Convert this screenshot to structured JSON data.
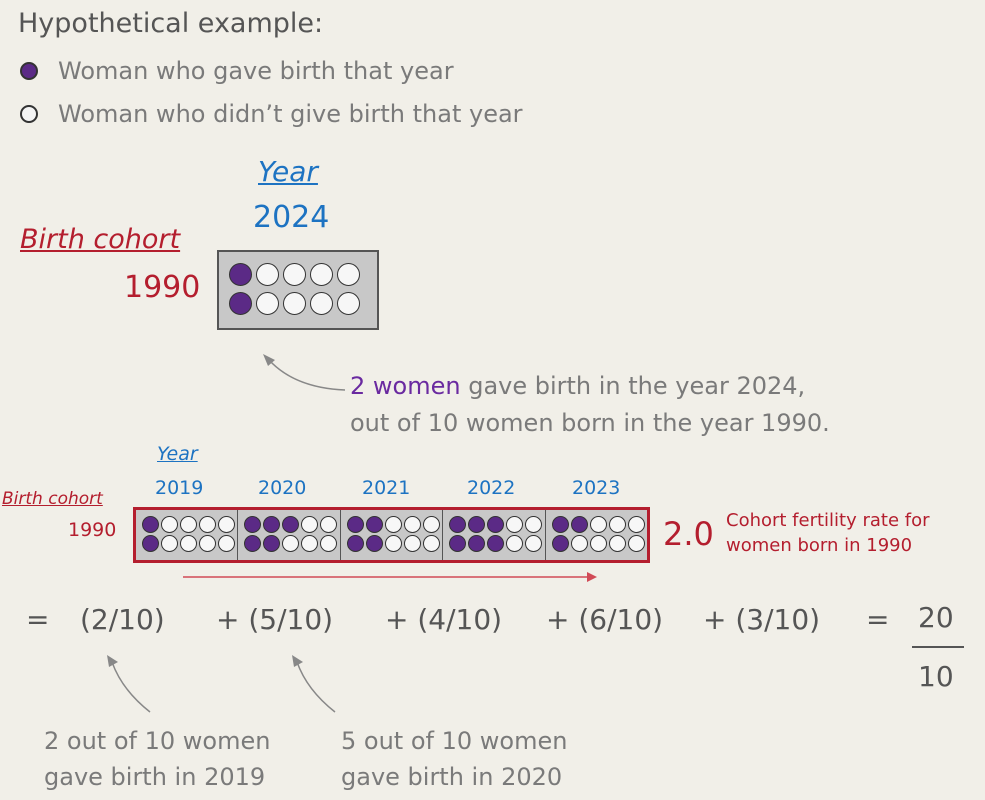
{
  "legend": {
    "title": "Hypothetical example:",
    "items": [
      {
        "label": "Woman who gave birth that year",
        "fill": "#5b2a86"
      },
      {
        "label": "Woman who didn’t give birth that year",
        "fill": "#f4f4f4"
      }
    ]
  },
  "example": {
    "year_label": "Year",
    "year_value": "2024",
    "cohort_label": "Birth cohort",
    "cohort_value": "1990",
    "grid": [
      [
        1,
        0,
        0,
        0,
        0
      ],
      [
        1,
        0,
        0,
        0,
        0
      ]
    ],
    "explanation_highlight": "2 women",
    "explanation_line1_rest": " gave birth in the year 2024,",
    "explanation_line2": "out of 10 women born in the year 1990."
  },
  "timeline": {
    "year_label": "Year",
    "cohort_label": "Birth cohort",
    "cohort_value": "1990",
    "years": [
      {
        "year": "2019",
        "grid": [
          [
            1,
            0,
            0,
            0,
            0
          ],
          [
            1,
            0,
            0,
            0,
            0
          ]
        ]
      },
      {
        "year": "2020",
        "grid": [
          [
            1,
            1,
            1,
            0,
            0
          ],
          [
            1,
            1,
            0,
            0,
            0
          ]
        ]
      },
      {
        "year": "2021",
        "grid": [
          [
            1,
            1,
            0,
            0,
            0
          ],
          [
            1,
            1,
            0,
            0,
            0
          ]
        ]
      },
      {
        "year": "2022",
        "grid": [
          [
            1,
            1,
            1,
            0,
            0
          ],
          [
            1,
            1,
            1,
            0,
            0
          ]
        ]
      },
      {
        "year": "2023",
        "grid": [
          [
            1,
            1,
            0,
            0,
            0
          ],
          [
            1,
            0,
            0,
            0,
            0
          ]
        ]
      }
    ],
    "rate_value": "2.0",
    "rate_label_line1": "Cohort fertility rate for",
    "rate_label_line2": "women born in 1990"
  },
  "equation": {
    "equals": "=",
    "terms": [
      "(2/10)",
      "+ (5/10)",
      "+ (4/10)",
      "+ (6/10)",
      "+ (3/10)"
    ],
    "equals2": "=",
    "numerator": "20",
    "denominator": "10"
  },
  "notes": [
    {
      "line1": "2 out of 10 women",
      "line2": "gave birth in 2019"
    },
    {
      "line1": "5 out of 10 women",
      "line2": "gave birth in 2020"
    }
  ],
  "colors": {
    "purple": "#5b2a86",
    "year_blue": "#1d73c2",
    "cohort_red": "#b41e2e",
    "background": "#f1efe8"
  }
}
